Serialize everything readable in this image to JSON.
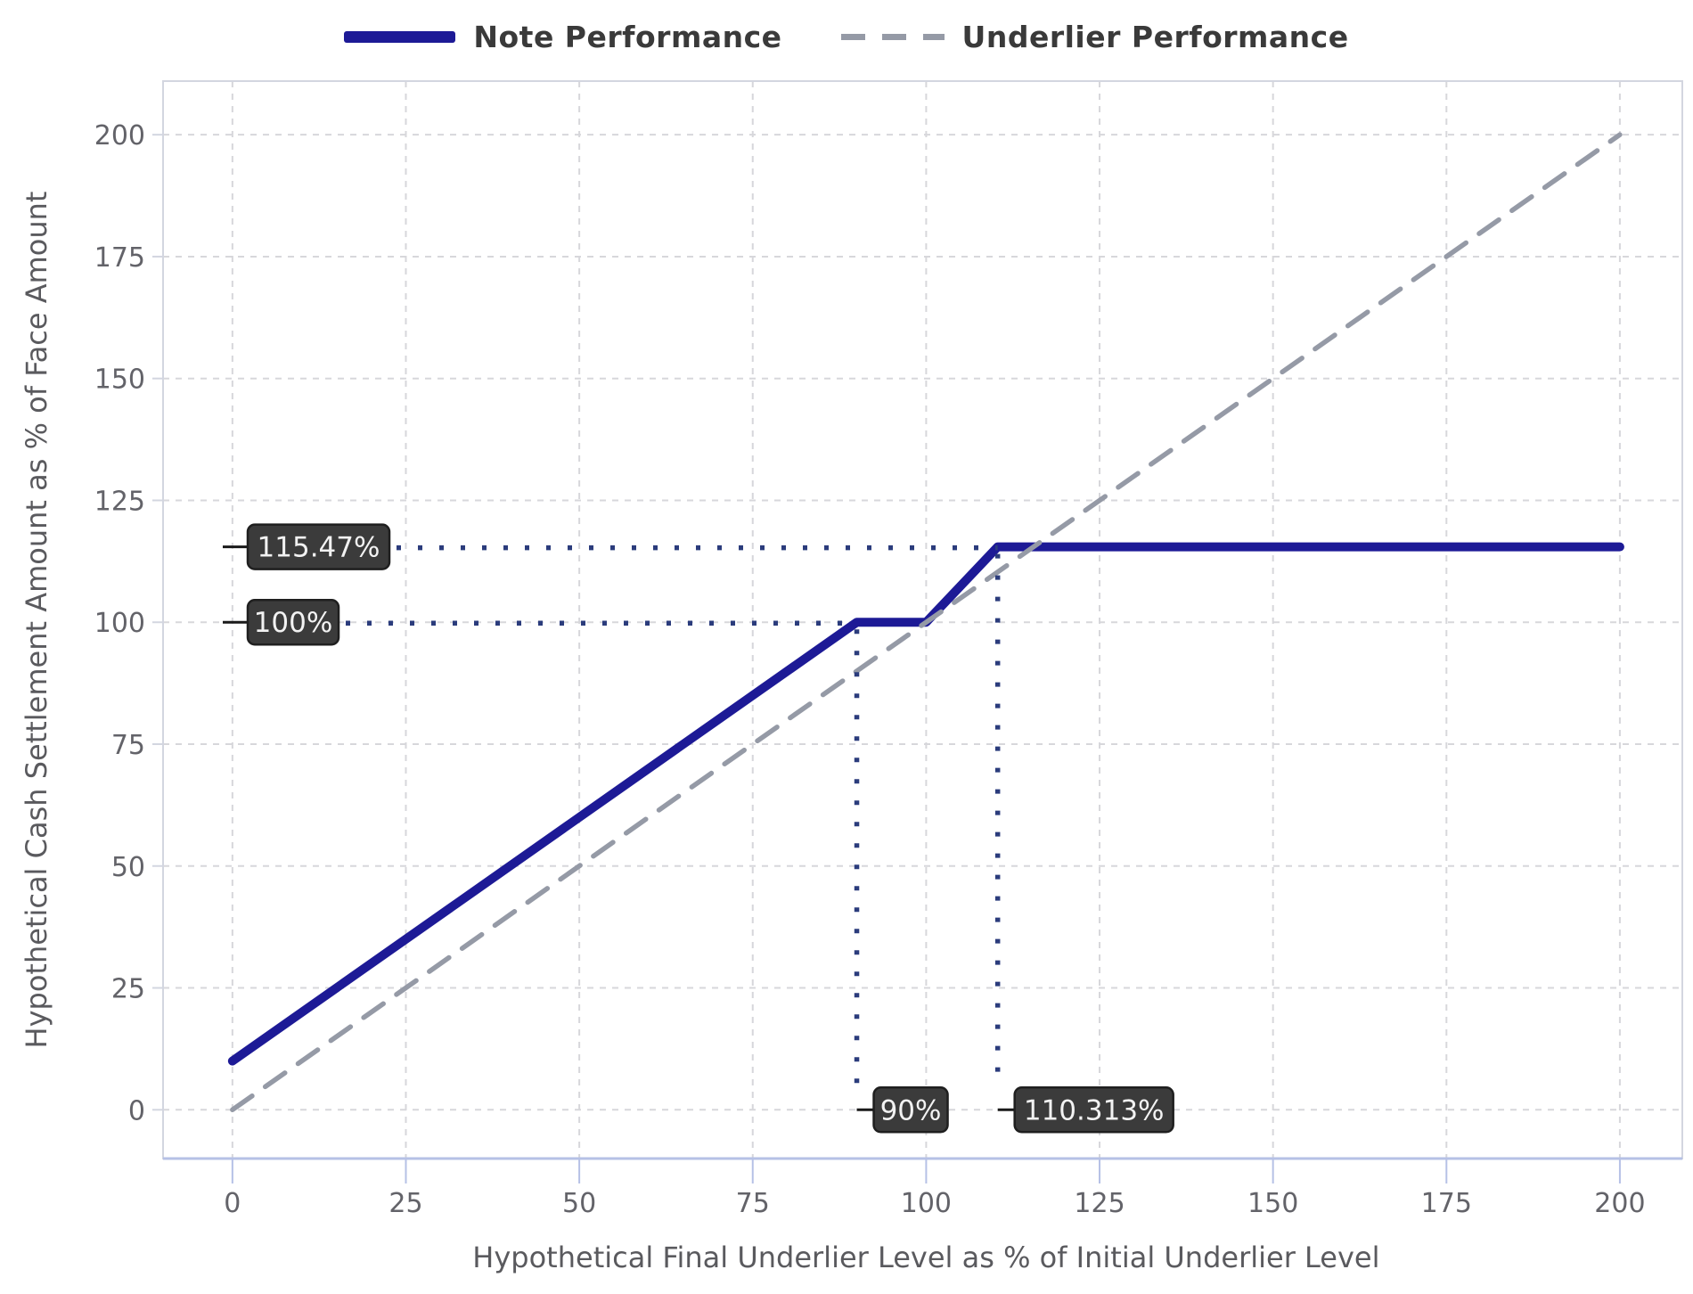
{
  "colors": {
    "note_line": "#1d1a96",
    "underlier_line": "#959aa6",
    "dotted_reference": "#2b3c7c",
    "grid": "#d7d7db",
    "plot_border": "#d3d6e0",
    "x_axis_line": "#b6c1e6",
    "tick_label_text": "#636369",
    "axis_title_text": "#5a5a5e",
    "legend_text": "#3a3a3a",
    "callout_bg": "#3b3b3b",
    "callout_border": "#1f1f1f",
    "callout_text": "#f2f2f2",
    "leader_line": "#1a1a1a"
  },
  "legend": {
    "items": [
      {
        "label": "Note Performance",
        "style": "solid"
      },
      {
        "label": "Underlier Performance",
        "style": "dashed"
      }
    ]
  },
  "chart_data": {
    "type": "line",
    "title": "",
    "xlabel": "Hypothetical Final Underlier Level as % of Initial Underlier Level",
    "ylabel": "Hypothetical Cash Settlement Amount as % of Face Amount",
    "x_ticks": [
      0,
      25,
      50,
      75,
      100,
      125,
      150,
      175,
      200
    ],
    "y_ticks": [
      0,
      25,
      50,
      75,
      100,
      125,
      150,
      175,
      200
    ],
    "xlim": [
      -10,
      209
    ],
    "ylim": [
      -10,
      211
    ],
    "grid": true,
    "legend_position": "top-center",
    "series": [
      {
        "name": "Note Performance",
        "style": "solid",
        "points": [
          [
            0,
            10
          ],
          [
            90,
            100
          ],
          [
            100,
            100
          ],
          [
            110.313,
            115.47
          ],
          [
            200,
            115.47
          ]
        ]
      },
      {
        "name": "Underlier Performance",
        "style": "dashed",
        "points": [
          [
            0,
            0
          ],
          [
            200,
            200
          ]
        ]
      }
    ],
    "annotations": {
      "y_callouts": [
        {
          "label": "115.47%",
          "value": 115.47,
          "dotted_to_x": 110.313
        },
        {
          "label": "100%",
          "value": 100,
          "dotted_to_x": 90
        }
      ],
      "x_callouts": [
        {
          "label": "90%",
          "value": 90,
          "dotted_from_y": 100
        },
        {
          "label": "110.313%",
          "value": 110.313,
          "dotted_from_y": 115.47
        }
      ]
    }
  }
}
